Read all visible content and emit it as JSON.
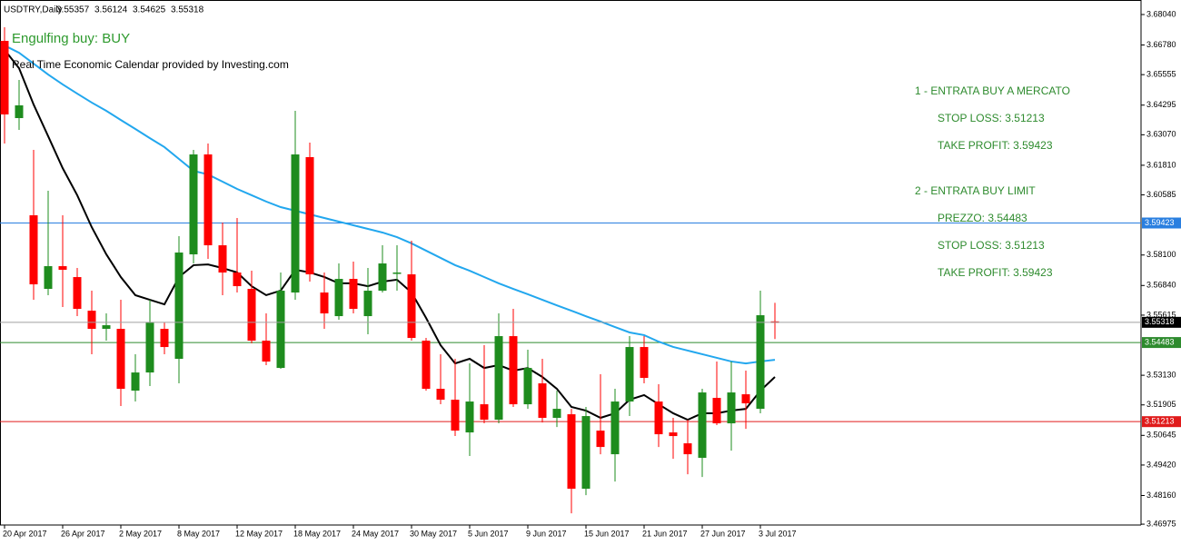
{
  "chart_data": {
    "type": "candlestick",
    "symbol": "USDTRY,Daily",
    "categories": [
      "20 Apr 2017",
      null,
      null,
      null,
      "26 Apr 2017",
      null,
      null,
      null,
      "2 May 2017",
      null,
      null,
      null,
      "8 May 2017",
      null,
      null,
      null,
      "12 May 2017",
      null,
      null,
      null,
      "18 May 2017",
      null,
      null,
      null,
      "24 May 2017",
      null,
      null,
      null,
      "30 May 2017",
      null,
      null,
      null,
      "5 Jun 2017",
      null,
      null,
      null,
      "9 Jun 2017",
      null,
      null,
      null,
      "15 Jun 2017",
      null,
      null,
      null,
      "21 Jun 2017",
      null,
      null,
      null,
      "27 Jun 2017",
      null,
      null,
      null,
      "3 Jul 2017",
      null
    ],
    "open": [
      3.66951,
      3.63759,
      3.59742,
      3.567,
      3.57639,
      3.57188,
      3.55799,
      3.55048,
      3.55048,
      3.52494,
      3.53245,
      3.55048,
      3.53809,
      3.58127,
      3.62257,
      3.58502,
      3.57376,
      3.567,
      3.5456,
      3.53433,
      3.5655,
      3.62145,
      3.5655,
      3.55574,
      3.57113,
      3.55574,
      3.56625,
      3.57338,
      3.57301,
      3.5456,
      3.5257,
      3.52119,
      3.50767,
      3.51931,
      3.51293,
      3.54747,
      3.51931,
      3.52795,
      3.51368,
      3.51518,
      3.48439,
      3.50842,
      3.49866,
      3.52044,
      3.54297,
      3.52044,
      3.50767,
      3.50317,
      3.49716,
      3.52194,
      3.51143,
      3.52344,
      3.51743,
      3.55357
    ],
    "high": [
      3.67514,
      3.65337,
      3.62445,
      3.60755,
      3.59742,
      3.57564,
      3.56625,
      3.55686,
      3.56249,
      3.53996,
      3.56249,
      3.55311,
      3.58878,
      3.62445,
      3.62708,
      3.59441,
      3.59629,
      3.57451,
      3.55686,
      3.57376,
      3.6406,
      3.62746,
      3.57376,
      3.57751,
      3.57827,
      3.57564,
      3.58502,
      3.58502,
      3.5869,
      3.54672,
      3.53996,
      3.53809,
      3.53621,
      3.54372,
      3.55686,
      3.55874,
      3.54184,
      3.53809,
      3.52494,
      3.51743,
      3.51819,
      3.5317,
      3.5257,
      3.54747,
      3.54747,
      3.52757,
      3.51368,
      3.51293,
      3.5257,
      3.53696,
      3.53696,
      3.53321,
      3.56625,
      3.56124
    ],
    "low": [
      3.62708,
      3.63271,
      3.56249,
      3.56437,
      3.55949,
      3.55574,
      3.53996,
      3.5456,
      3.51856,
      3.52044,
      3.52682,
      3.53996,
      3.52795,
      3.57751,
      3.57939,
      3.56437,
      3.5655,
      3.54447,
      3.53546,
      3.53396,
      3.56249,
      3.57,
      3.55048,
      3.55423,
      3.55686,
      3.54823,
      3.5655,
      3.56625,
      3.5456,
      3.52494,
      3.51931,
      3.50617,
      3.49791,
      3.51143,
      3.51143,
      3.51819,
      3.51743,
      3.5118,
      3.50992,
      3.47425,
      3.48176,
      3.49866,
      3.48739,
      3.51443,
      3.52795,
      3.50166,
      3.49678,
      3.4904,
      3.48927,
      3.51068,
      3.50016,
      3.50917,
      3.51556,
      3.54625
    ],
    "close": [
      3.6391,
      3.64285,
      3.56888,
      3.57639,
      3.57489,
      3.55874,
      3.55048,
      3.55198,
      3.5257,
      3.53245,
      3.55311,
      3.54297,
      3.58202,
      3.62257,
      3.58502,
      3.57376,
      3.56813,
      3.5456,
      3.53696,
      3.56625,
      3.62257,
      3.57301,
      3.55686,
      3.57113,
      3.55874,
      3.56625,
      3.57751,
      3.57376,
      3.54672,
      3.5257,
      3.52119,
      3.50842,
      3.52044,
      3.51293,
      3.54747,
      3.51931,
      3.53433,
      3.51368,
      3.51743,
      3.48439,
      3.51443,
      3.50166,
      3.52044,
      3.54297,
      3.5302,
      3.50692,
      3.50617,
      3.49866,
      3.52419,
      3.51143,
      3.52419,
      3.51969,
      3.55611,
      3.55318
    ],
    "up_color": "#1e8c1e",
    "down_color": "#ff0000",
    "moving_averages": [
      {
        "color": "#000000",
        "values": [
          3.6658,
          3.6582,
          3.6432,
          3.6301,
          3.6169,
          3.6057,
          3.5925,
          3.5813,
          3.5719,
          3.5644,
          3.5625,
          3.5606,
          3.5719,
          3.5768,
          3.5771,
          3.5756,
          3.5738,
          3.5681,
          3.5644,
          3.5663,
          3.5749,
          3.5738,
          3.5719,
          3.5693,
          3.5693,
          3.5681,
          3.57,
          3.5708,
          3.5655,
          3.555,
          3.5437,
          3.5362,
          3.5381,
          3.5343,
          3.5355,
          3.5332,
          3.5343,
          3.5306,
          3.5257,
          3.5182,
          3.5167,
          3.5137,
          3.5156,
          3.5212,
          3.5231,
          3.5193,
          3.5156,
          3.5129,
          3.5156,
          3.5156,
          3.5167,
          3.5174,
          3.5249,
          3.5306
        ]
      },
      {
        "color": "#22a7ee",
        "values": [
          3.6676,
          3.6646,
          3.6601,
          3.6556,
          3.6515,
          3.6477,
          3.644,
          3.6406,
          3.6368,
          3.6331,
          3.6293,
          3.6256,
          3.6207,
          3.6158,
          3.6143,
          3.6113,
          3.6083,
          3.6057,
          3.6031,
          3.6008,
          3.5993,
          3.5978,
          3.5963,
          3.5948,
          3.5933,
          3.5918,
          3.5903,
          3.5884,
          3.5858,
          3.5828,
          3.5798,
          3.5768,
          3.5745,
          3.5719,
          3.5693,
          3.567,
          3.5648,
          3.5625,
          3.5602,
          3.558,
          3.5557,
          3.5535,
          3.5512,
          3.549,
          3.5479,
          3.5452,
          3.543,
          3.5415,
          3.54,
          3.5385,
          3.537,
          3.5362,
          3.537,
          3.5377
        ]
      }
    ],
    "levels": [
      {
        "value": 3.59423,
        "color": "#2a7fe0"
      },
      {
        "value": 3.54483,
        "color": "#2e8b2e"
      },
      {
        "value": 3.51213,
        "color": "#e01b1b"
      }
    ],
    "current_color": "#a0a0a0",
    "annotations": [
      {
        "text": "Engulfing buy: BUY",
        "color": "#2e9a2e"
      },
      {
        "text": "Real Time Economic Calendar provided by Investing.com",
        "color": "#000000"
      }
    ],
    "text_block": [
      "1 - ENTRATA BUY A MERCATO",
      "STOP LOSS: 3.51213",
      "TAKE PROFIT: 3.59423",
      "2 - ENTRATA BUY LIMIT",
      "PREZZO: 3.54483",
      "STOP LOSS: 3.51213",
      "TAKE PROFIT: 3.59423"
    ],
    "text_block_color": "#2e8b2e",
    "ylim": [
      3.4694,
      3.6849
    ],
    "yticks": [
      {
        "value": 3.6804,
        "label": "3.68040"
      },
      {
        "value": 3.6678,
        "label": "3.66780"
      },
      {
        "value": 3.65555,
        "label": "3.65555"
      },
      {
        "value": 3.64295,
        "label": "3.64295"
      },
      {
        "value": 3.6307,
        "label": "3.63070"
      },
      {
        "value": 3.6181,
        "label": "3.61810"
      },
      {
        "value": 3.60585,
        "label": "3.60585"
      },
      {
        "value": 3.581,
        "label": "3.58100"
      },
      {
        "value": 3.5684,
        "label": "3.56840"
      },
      {
        "value": 3.55615,
        "label": "3.55615"
      },
      {
        "value": 3.5313,
        "label": "3.53130"
      },
      {
        "value": 3.51905,
        "label": "3.51905"
      },
      {
        "value": 3.50645,
        "label": "3.50645"
      },
      {
        "value": 3.4942,
        "label": "3.49420"
      },
      {
        "value": 3.4816,
        "label": "3.48160"
      },
      {
        "value": 3.46975,
        "label": "3.46975"
      }
    ]
  }
}
